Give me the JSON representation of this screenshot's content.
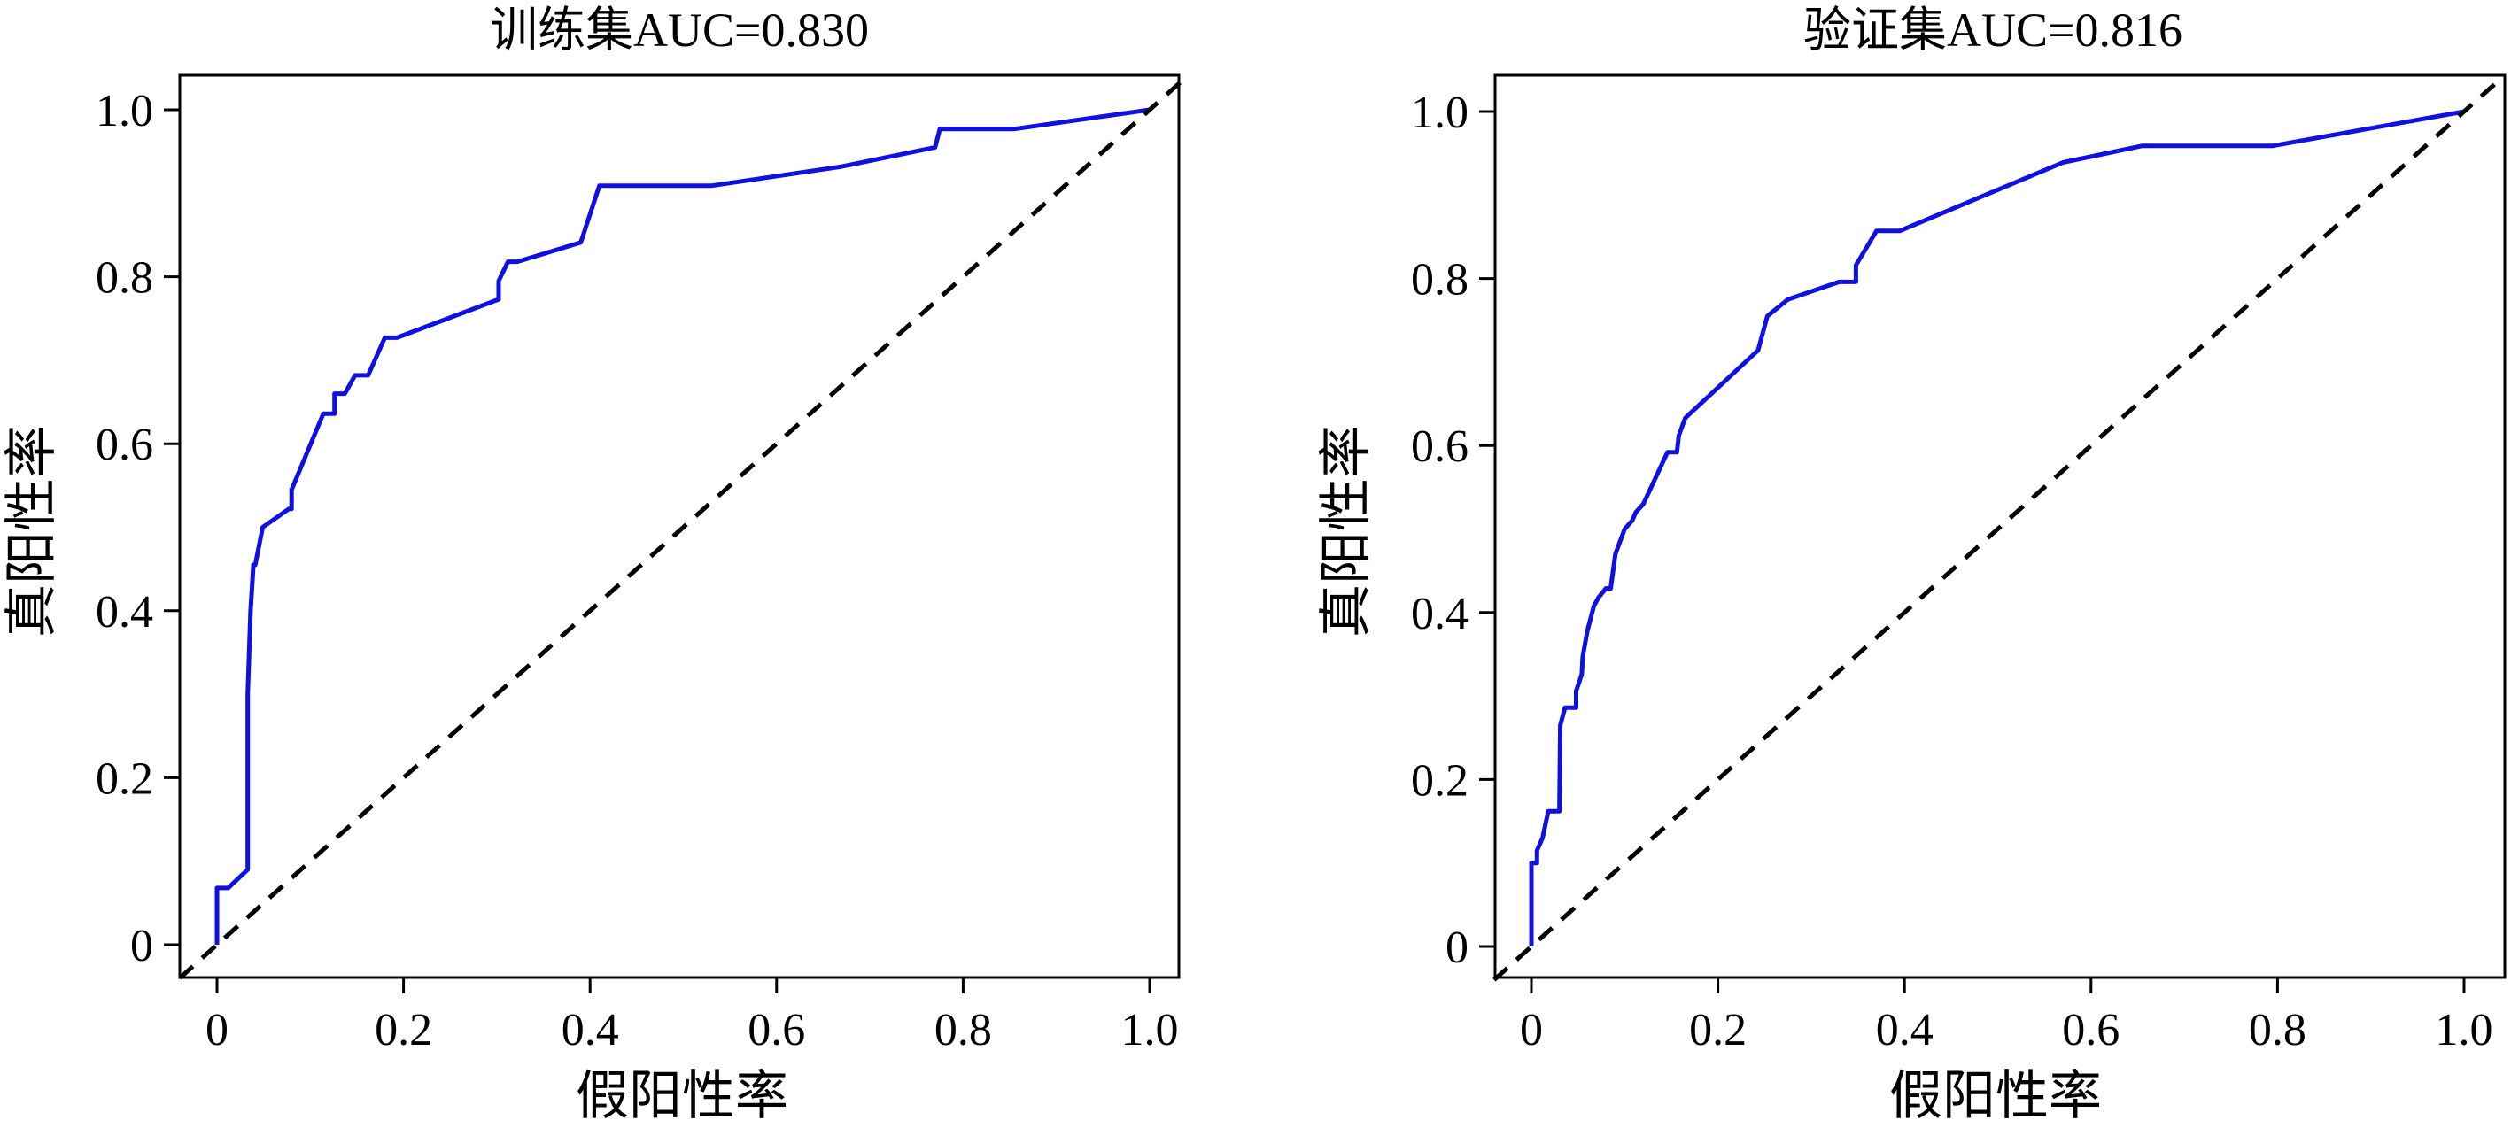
{
  "chart_data": [
    {
      "type": "line",
      "title": "训练集AUC=0.830",
      "xlabel": "假阳性率",
      "ylabel": "真阳性率",
      "xlim": [
        0,
        1
      ],
      "ylim": [
        0,
        1
      ],
      "xticks": [
        0,
        0.2,
        0.4,
        0.6,
        0.8,
        1.0
      ],
      "xtick_labels": [
        "0",
        "0.2",
        "0.4",
        "0.6",
        "0.8",
        "1.0"
      ],
      "yticks": [
        0,
        0.2,
        0.4,
        0.6,
        0.8,
        1.0
      ],
      "ytick_labels": [
        "0",
        "0.2",
        "0.4",
        "0.6",
        "0.8",
        "1.0"
      ],
      "grid": false,
      "series": [
        {
          "color": "#1010e0",
          "style": "solid",
          "x": [
            0.0,
            0.0,
            0.008,
            0.012,
            0.033,
            0.033,
            0.036,
            0.039,
            0.041,
            0.049,
            0.077,
            0.08,
            0.08,
            0.114,
            0.126,
            0.126,
            0.137,
            0.148,
            0.162,
            0.18,
            0.193,
            0.302,
            0.302,
            0.312,
            0.322,
            0.39,
            0.41,
            0.53,
            0.67,
            0.77,
            0.775,
            0.78,
            0.855,
            1.0
          ],
          "y": [
            0.0,
            0.068,
            0.068,
            0.068,
            0.09,
            0.3,
            0.4,
            0.455,
            0.455,
            0.5,
            0.522,
            0.522,
            0.545,
            0.636,
            0.636,
            0.66,
            0.66,
            0.682,
            0.682,
            0.727,
            0.727,
            0.773,
            0.795,
            0.818,
            0.818,
            0.841,
            0.909,
            0.909,
            0.932,
            0.955,
            0.977,
            0.977,
            0.977,
            1.0
          ]
        },
        {
          "color": "#000000",
          "style": "dashed",
          "x": [
            -0.04,
            1.04
          ],
          "y": [
            -0.04,
            1.04
          ]
        }
      ]
    },
    {
      "type": "line",
      "title": "验证集AUC=0.816",
      "xlabel": "假阳性率",
      "ylabel": "真阳性率",
      "xlim": [
        0,
        1
      ],
      "ylim": [
        0,
        1
      ],
      "xticks": [
        0,
        0.2,
        0.4,
        0.6,
        0.8,
        1.0
      ],
      "xtick_labels": [
        "0",
        "0.2",
        "0.4",
        "0.6",
        "0.8",
        "1.0"
      ],
      "yticks": [
        0,
        0.2,
        0.4,
        0.6,
        0.8,
        1.0
      ],
      "ytick_labels": [
        "0",
        "0.2",
        "0.4",
        "0.6",
        "0.8",
        "1.0"
      ],
      "grid": false,
      "series": [
        {
          "color": "#1010e0",
          "style": "solid",
          "x": [
            0.0,
            0.0,
            0.006,
            0.006,
            0.012,
            0.018,
            0.02,
            0.03,
            0.031,
            0.036,
            0.048,
            0.048,
            0.054,
            0.055,
            0.06,
            0.067,
            0.072,
            0.08,
            0.085,
            0.09,
            0.1,
            0.108,
            0.112,
            0.12,
            0.146,
            0.156,
            0.158,
            0.165,
            0.243,
            0.253,
            0.275,
            0.33,
            0.348,
            0.348,
            0.37,
            0.395,
            0.57,
            0.655,
            0.795,
            1.0
          ],
          "y": [
            0.0,
            0.1,
            0.1,
            0.115,
            0.13,
            0.162,
            0.162,
            0.162,
            0.265,
            0.286,
            0.286,
            0.306,
            0.326,
            0.347,
            0.378,
            0.408,
            0.418,
            0.429,
            0.429,
            0.47,
            0.5,
            0.51,
            0.52,
            0.53,
            0.592,
            0.592,
            0.612,
            0.633,
            0.714,
            0.755,
            0.775,
            0.796,
            0.796,
            0.816,
            0.857,
            0.857,
            0.939,
            0.959,
            0.959,
            1.0
          ]
        },
        {
          "color": "#000000",
          "style": "dashed",
          "x": [
            -0.04,
            1.04
          ],
          "y": [
            -0.04,
            1.04
          ]
        }
      ]
    }
  ]
}
